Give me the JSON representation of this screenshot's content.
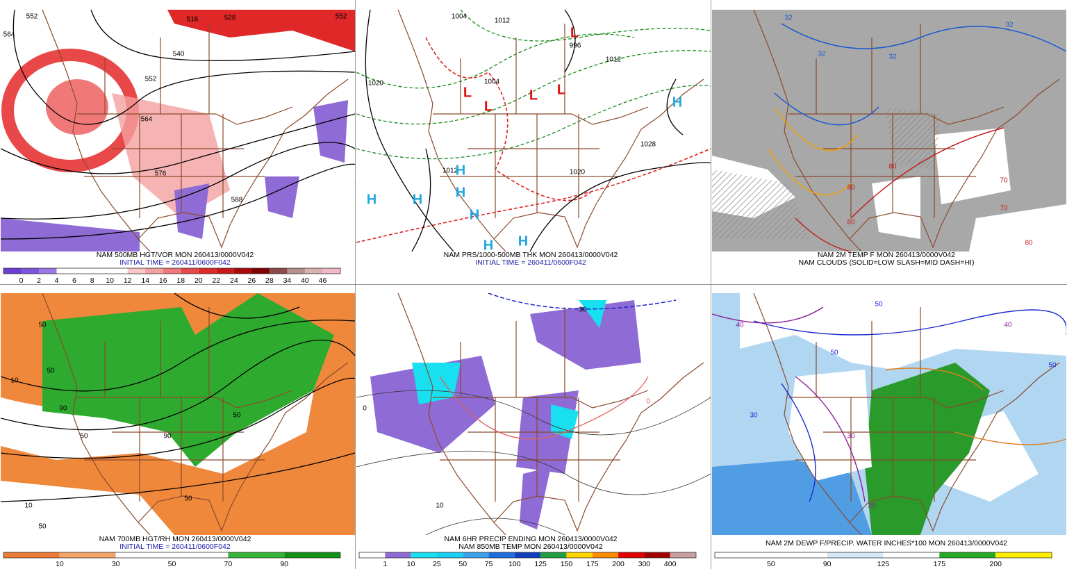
{
  "panels": [
    {
      "caption": [
        "NAM 500MB HGT/VOR MON 260413/0000V042",
        "INITIAL TIME = 260411/0600F042"
      ],
      "colorbar": {
        "ticks": [
          0,
          2,
          4,
          6,
          8,
          10,
          12,
          14,
          16,
          18,
          20,
          22,
          24,
          26,
          28,
          34,
          40,
          46
        ],
        "colors": [
          "#6a3cd4",
          "#7d55dc",
          "#9a78e4",
          "#ffffff",
          "#ffffff",
          "#ffffff",
          "#ffffff",
          "#f8c8c8",
          "#f4a0a0",
          "#f07878",
          "#e84848",
          "#e02828",
          "#c81818",
          "#a80808",
          "#800000",
          "#8a4a4a",
          "#b89090",
          "#d8b0b0",
          "#f0b8c8"
        ]
      },
      "map_labels": [
        "552",
        "564",
        "516",
        "528",
        "540",
        "552",
        "564",
        "576",
        "588",
        "552"
      ]
    },
    {
      "caption": [
        "NAM PRS/1000-500MB THK MON 260413/0000V042",
        "INITIAL TIME = 260411/0600F042"
      ],
      "map_labels": [
        "1004",
        "1012",
        "996",
        "1012",
        "1020",
        "1004",
        "1028",
        "1020",
        "1012",
        "H",
        "H",
        "H",
        "H",
        "H",
        "H",
        "H",
        "H",
        "L",
        "L",
        "L",
        "L",
        "L"
      ]
    },
    {
      "caption": [
        "NAM 2M TEMP F MON 260413/0000V042",
        "NAM CLOUDS (SOLID=LOW SLASH=MID DASH=HI)"
      ],
      "map_labels": [
        "32",
        "32",
        "32",
        "32",
        "80",
        "80",
        "80",
        "70",
        "70",
        "80"
      ]
    },
    {
      "caption": [
        "NAM 700MB HGT/RH MON 260413/0000V042",
        "INITIAL TIME = 260411/0600F042"
      ],
      "colorbar": {
        "ticks": [
          10,
          30,
          50,
          70,
          90
        ],
        "colors": [
          "#ec7a34",
          "#f4a468",
          "#ffffff",
          "#ffffff",
          "#36b436",
          "#129212"
        ]
      },
      "map_labels": [
        "50",
        "10",
        "50",
        "90",
        "50",
        "10",
        "50",
        "50",
        "50",
        "90"
      ]
    },
    {
      "caption": [
        "NAM 6HR PRECIP ENDING MON 260413/0000V042",
        "NAM 850MB TEMP MON 260413/0000V042"
      ],
      "colorbar": {
        "ticks": [
          1,
          10,
          25,
          50,
          75,
          100,
          125,
          150,
          175,
          200,
          300,
          400
        ],
        "colors": [
          "#ffffff",
          "#8f6bd6",
          "#18e0f0",
          "#18d0f8",
          "#3aa0f0",
          "#1e6ee0",
          "#1040c0",
          "#20a040",
          "#ffd700",
          "#ff8c00",
          "#e00000",
          "#a00000",
          "#c8a0a0"
        ]
      },
      "map_labels": [
        "30",
        "0",
        "10",
        "0"
      ]
    },
    {
      "caption": [
        "NAM 2M DEWP F/PRECIP. WATER INCHES*100 MON 260413/0000V042"
      ],
      "colorbar": {
        "ticks": [
          50,
          90,
          125,
          175,
          200
        ],
        "colors": [
          "#ffffff",
          "#ffffff",
          "#d4e8f8",
          "#ffffff",
          "#22aa22",
          "#ffee00"
        ]
      },
      "map_labels": [
        "40",
        "30",
        "50",
        "40",
        "50",
        "30",
        "20",
        "50"
      ]
    }
  ]
}
